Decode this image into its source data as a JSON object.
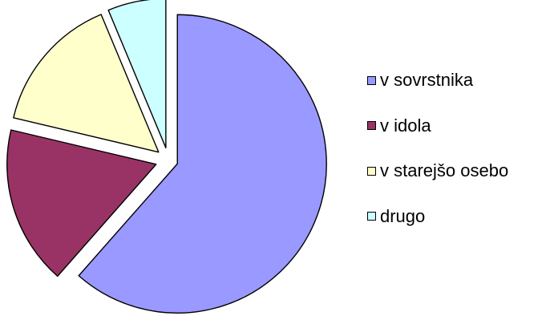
{
  "chart_data": {
    "type": "pie",
    "categories": [
      "v sovrstnika",
      "v idola",
      "v starejšo osebo",
      "drugo"
    ],
    "values": [
      61.5,
      17.2,
      15,
      6.3
    ],
    "colors": [
      "#9999FF",
      "#993366",
      "#FFFFCC",
      "#CCFFFF"
    ],
    "start_angle_deg": 0,
    "direction": "clockwise",
    "exploded": true,
    "legend_position": "right",
    "title": ""
  },
  "legend": {
    "items": [
      {
        "label": "v sovrstnika",
        "color": "#9999FF"
      },
      {
        "label": "v idola",
        "color": "#993366"
      },
      {
        "label": "v starejšo osebo",
        "color": "#FFFFCC"
      },
      {
        "label": "drugo",
        "color": "#CCFFFF"
      }
    ]
  }
}
